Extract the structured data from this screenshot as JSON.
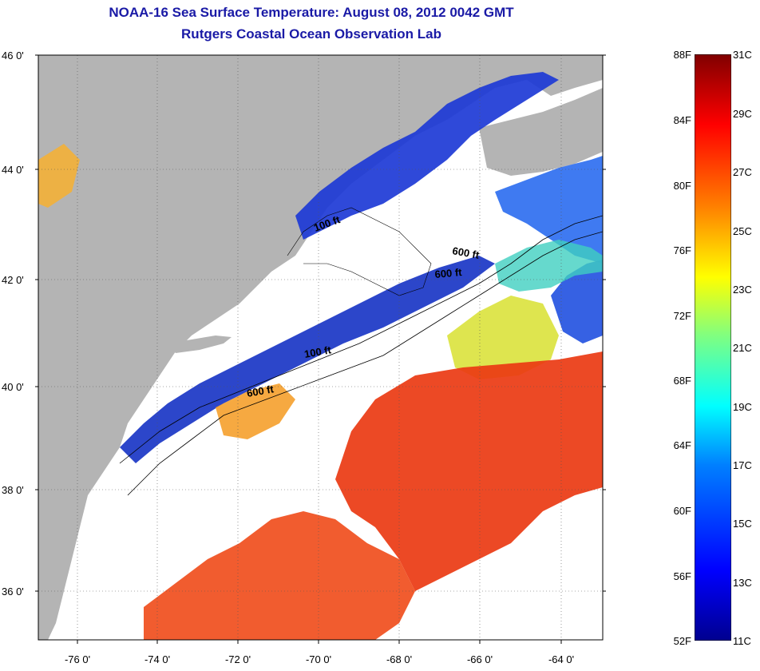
{
  "title_line1": "NOAA-16 Sea Surface Temperature:  August 08, 2012 0042 GMT",
  "title_line2": "Rutgers Coastal Ocean Observation Lab",
  "lat_labels": [
    "46 0'",
    "44 0'",
    "42 0'",
    "40 0'",
    "38 0'",
    "36 0'"
  ],
  "lon_labels": [
    "-76 0'",
    "-74 0'",
    "-72 0'",
    "-70 0'",
    "-68 0'",
    "-66 0'",
    "-64 0'"
  ],
  "contour_labels": [
    "100 ft",
    "600 ft",
    "600 ft",
    "100 ft",
    "600 ft"
  ],
  "colorbar": {
    "fahrenheit": [
      "88F",
      "84F",
      "80F",
      "76F",
      "72F",
      "68F",
      "64F",
      "60F",
      "56F",
      "52F"
    ],
    "celsius": [
      "31C",
      "29C",
      "27C",
      "25C",
      "23C",
      "21C",
      "19C",
      "17C",
      "15C",
      "13C",
      "11C"
    ]
  },
  "colors": {
    "land": "#b4b4b4",
    "clouds": "#ffffff",
    "title": "#1a1aa6",
    "cold": "#1030d0",
    "warm": "#e83010"
  }
}
